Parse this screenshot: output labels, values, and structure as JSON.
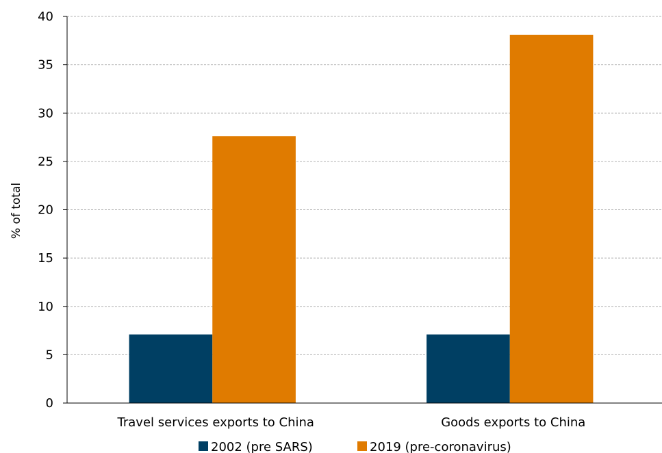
{
  "chart_data": {
    "type": "bar",
    "categories": [
      "Travel services exports to China",
      "Goods exports to China"
    ],
    "series": [
      {
        "name": "2002 (pre SARS)",
        "values": [
          7.1,
          7.1
        ],
        "color": "#003f63"
      },
      {
        "name": "2019 (pre-coronavirus)",
        "values": [
          27.6,
          38.1
        ],
        "color": "#e07b00"
      }
    ],
    "ylabel": "% of total",
    "ylim": [
      0,
      40
    ],
    "yticks": [
      0,
      5,
      10,
      15,
      20,
      25,
      30,
      35,
      40
    ],
    "grid": true,
    "legend_position": "bottom"
  }
}
